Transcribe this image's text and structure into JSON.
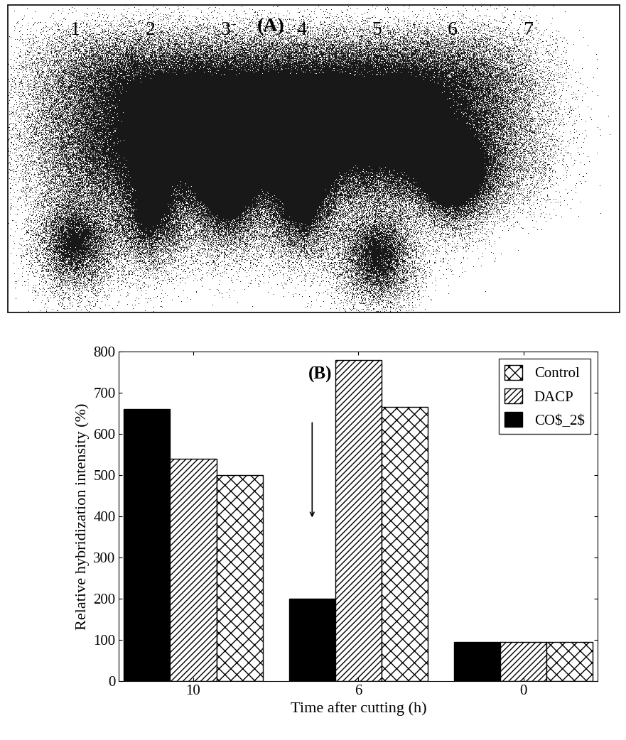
{
  "panel_a": {
    "label": "(A)",
    "lanes": [
      "1",
      "2",
      "3",
      "4",
      "5",
      "6",
      "7"
    ]
  },
  "chart_data": {
    "type": "bar",
    "title": "(B)",
    "x_label": "Time after cutting (h)",
    "y_label": "Relative hybridization intensity (%)",
    "categories": [
      "10",
      "6",
      "0"
    ],
    "series": [
      {
        "name": "CO$_2$",
        "color": "#000000",
        "values": [
          660,
          200,
          95
        ]
      },
      {
        "name": "DACP",
        "color": "#ffffff",
        "values": [
          540,
          780,
          95
        ]
      },
      {
        "name": "Control",
        "color": "#ffffff",
        "values": [
          500,
          665,
          95
        ]
      }
    ],
    "ylim": [
      0,
      800
    ],
    "yticks": [
      0,
      100,
      200,
      300,
      400,
      500,
      600,
      700,
      800
    ],
    "legend": "upper right"
  }
}
